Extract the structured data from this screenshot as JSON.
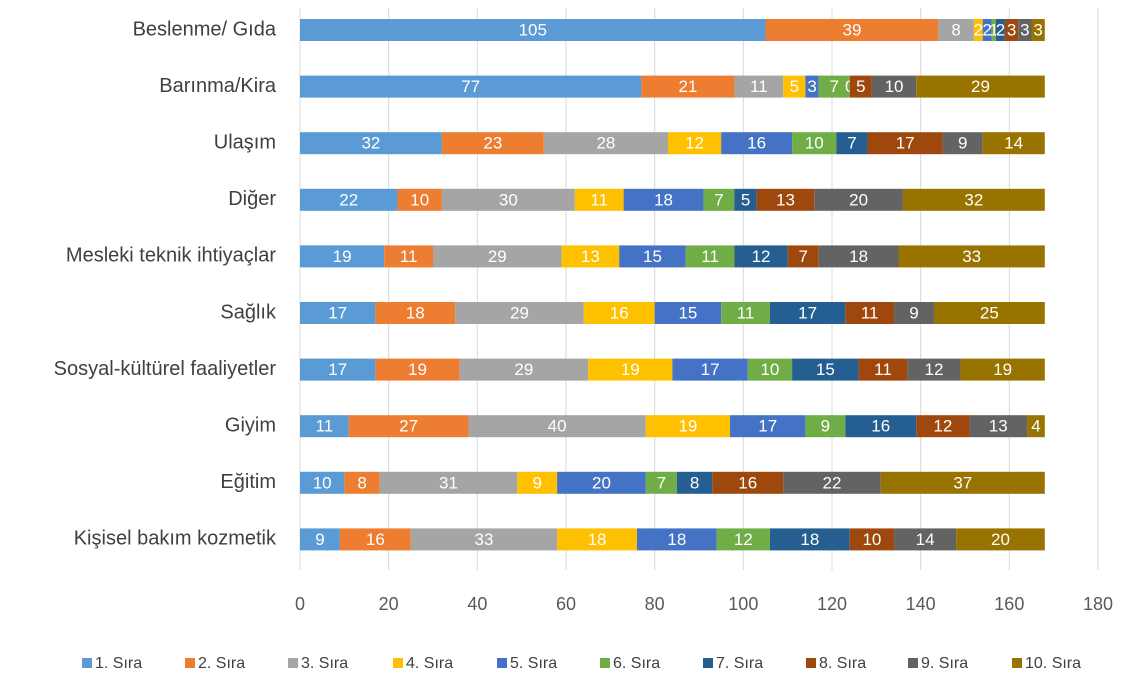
{
  "chart_data": {
    "type": "stacked_barh",
    "categories": [
      "Beslenme/ Gıda",
      "Barınma/Kira",
      "Ulaşım",
      "Diğer",
      "Mesleki teknik ihtiyaçlar",
      "Sağlık",
      "Sosyal-kültürel faaliyetler",
      "Giyim",
      "Eğitim",
      "Kişisel bakım kozmetik"
    ],
    "series": [
      {
        "name": "1. Sıra",
        "color": "#5b9bd5",
        "values": [
          105,
          77,
          32,
          22,
          19,
          17,
          17,
          11,
          10,
          9
        ]
      },
      {
        "name": "2. Sıra",
        "color": "#ed7d31",
        "values": [
          39,
          21,
          23,
          10,
          11,
          18,
          19,
          27,
          8,
          16
        ]
      },
      {
        "name": "3. Sıra",
        "color": "#a5a5a5",
        "values": [
          8,
          11,
          28,
          30,
          29,
          29,
          29,
          40,
          31,
          33
        ]
      },
      {
        "name": "4. Sıra",
        "color": "#ffc000",
        "values": [
          2,
          5,
          12,
          11,
          13,
          16,
          19,
          19,
          9,
          18
        ]
      },
      {
        "name": "5. Sıra",
        "color": "#4472c4",
        "values": [
          2,
          3,
          16,
          18,
          15,
          15,
          17,
          17,
          20,
          18
        ]
      },
      {
        "name": "6. Sıra",
        "color": "#70ad47",
        "values": [
          1,
          7,
          10,
          7,
          11,
          11,
          10,
          9,
          7,
          12
        ]
      },
      {
        "name": "7. Sıra",
        "color": "#255e91",
        "values": [
          2,
          0,
          7,
          5,
          12,
          17,
          15,
          16,
          8,
          18
        ]
      },
      {
        "name": "8. Sıra",
        "color": "#9e480e",
        "values": [
          3,
          5,
          17,
          13,
          7,
          11,
          11,
          12,
          16,
          10
        ]
      },
      {
        "name": "9. Sıra",
        "color": "#636363",
        "values": [
          3,
          10,
          9,
          20,
          18,
          9,
          12,
          13,
          22,
          14
        ]
      },
      {
        "name": "10. Sıra",
        "color": "#997300",
        "values": [
          3,
          29,
          14,
          32,
          33,
          25,
          19,
          4,
          37,
          20
        ]
      }
    ],
    "xlim": [
      0,
      180
    ],
    "xticks": [
      0,
      20,
      40,
      60,
      80,
      100,
      120,
      140,
      160,
      180
    ],
    "grid": true,
    "legend": "bottom"
  }
}
